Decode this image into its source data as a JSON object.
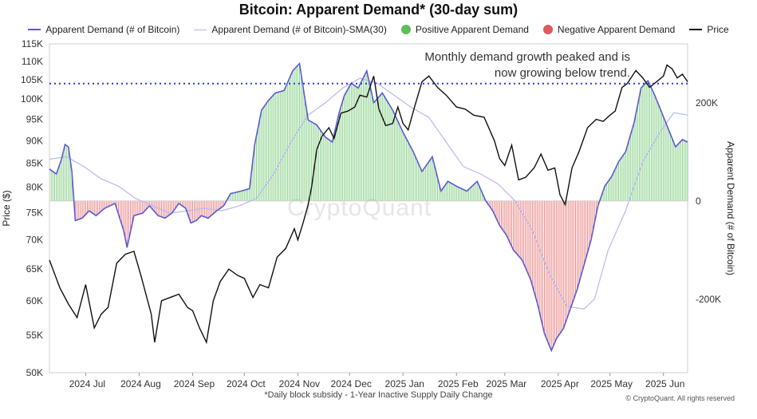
{
  "chart_data": {
    "type": "line",
    "title": "Bitcoin: Apparent Demand* (30-day sum)",
    "legend": [
      {
        "name": "Apparent Demand (# of Bitcoin)",
        "color": "#5b5bd6",
        "style": "line"
      },
      {
        "name": "Apparent Demand (# of Bitcoin)-SMA(30)",
        "color": "#b9b9f0",
        "style": "thin-line"
      },
      {
        "name": "Positive Apparent Demand",
        "color": "#5cbf5c",
        "style": "dot"
      },
      {
        "name": "Negative Apparent Demand",
        "color": "#e05a5a",
        "style": "dot"
      },
      {
        "name": "Price",
        "color": "#111111",
        "style": "line"
      }
    ],
    "legend_placement": "top",
    "left_axis": {
      "label": "Price ($)",
      "scale": "log",
      "range": [
        50000,
        115000
      ],
      "ticks": [
        "50K",
        "55K",
        "60K",
        "65K",
        "70K",
        "75K",
        "80K",
        "85K",
        "90K",
        "95K",
        "100K",
        "105K",
        "110K",
        "115K"
      ],
      "tick_values": [
        50000,
        55000,
        60000,
        65000,
        70000,
        75000,
        80000,
        85000,
        90000,
        95000,
        100000,
        105000,
        110000,
        115000
      ]
    },
    "right_axis": {
      "label": "Apparent Demand (# of Bitcoin)",
      "range": [
        -350000,
        320000
      ],
      "ticks": [
        "200K",
        "0",
        "-200K"
      ],
      "tick_values": [
        200000,
        0,
        -200000
      ]
    },
    "x_axis": {
      "ticks": [
        "2024 Jul",
        "2024 Aug",
        "2024 Sep",
        "2024 Oct",
        "2024 Nov",
        "2024 Dec",
        "2025 Jan",
        "2025 Feb",
        "2025 Mar",
        "2025 Apr",
        "2025 May",
        "2025 Jun"
      ],
      "tick_days": [
        -3,
        28,
        59,
        89,
        120,
        150,
        181,
        212,
        240,
        271,
        301,
        332
      ]
    },
    "x_range_days": [
      -24,
      346
    ],
    "reference_line": {
      "value": 104000,
      "axis": "left",
      "style": "dotted",
      "color": "#2a3bd8"
    },
    "annotation": [
      "Monthly demand growth peaked and is",
      "now growing below trend."
    ],
    "watermark": "CryptoQuant",
    "footnote": "*Daily block subsidy - 1-Year Inactive Supply Daily Change",
    "credit": "© CryptoQuant. All rights reserved",
    "series": [
      {
        "name": "Price",
        "axis": "left",
        "points": [
          [
            -24,
            66500
          ],
          [
            -18,
            62000
          ],
          [
            -13,
            59500
          ],
          [
            -8,
            57500
          ],
          [
            -3,
            62500
          ],
          [
            2,
            56000
          ],
          [
            6,
            58000
          ],
          [
            10,
            59000
          ],
          [
            15,
            66000
          ],
          [
            20,
            67500
          ],
          [
            25,
            68000
          ],
          [
            29,
            64000
          ],
          [
            35,
            58000
          ],
          [
            37,
            54000
          ],
          [
            41,
            60000
          ],
          [
            46,
            60500
          ],
          [
            51,
            61000
          ],
          [
            56,
            59000
          ],
          [
            59,
            58500
          ],
          [
            63,
            56000
          ],
          [
            67,
            54000
          ],
          [
            71,
            60000
          ],
          [
            75,
            63000
          ],
          [
            80,
            65000
          ],
          [
            85,
            64000
          ],
          [
            89,
            63500
          ],
          [
            94,
            60500
          ],
          [
            98,
            62500
          ],
          [
            103,
            62000
          ],
          [
            108,
            67000
          ],
          [
            113,
            68500
          ],
          [
            118,
            72000
          ],
          [
            120,
            70000
          ],
          [
            123,
            73000
          ],
          [
            126,
            76500
          ],
          [
            128,
            80000
          ],
          [
            131,
            88000
          ],
          [
            134,
            91000
          ],
          [
            138,
            93000
          ],
          [
            141,
            90500
          ],
          [
            145,
            96500
          ],
          [
            149,
            97000
          ],
          [
            153,
            98000
          ],
          [
            156,
            101000
          ],
          [
            160,
            100500
          ],
          [
            164,
            106000
          ],
          [
            167,
            97500
          ],
          [
            171,
            93500
          ],
          [
            175,
            94000
          ],
          [
            178,
            98000
          ],
          [
            181,
            94000
          ],
          [
            184,
            92500
          ],
          [
            188,
            98500
          ],
          [
            192,
            104500
          ],
          [
            196,
            106000
          ],
          [
            201,
            103000
          ],
          [
            206,
            101000
          ],
          [
            212,
            98000
          ],
          [
            217,
            97500
          ],
          [
            222,
            96000
          ],
          [
            228,
            95500
          ],
          [
            234,
            90000
          ],
          [
            237,
            86000
          ],
          [
            240,
            84500
          ],
          [
            244,
            89000
          ],
          [
            248,
            81500
          ],
          [
            252,
            82000
          ],
          [
            257,
            84000
          ],
          [
            261,
            87000
          ],
          [
            265,
            83500
          ],
          [
            269,
            84000
          ],
          [
            272,
            78500
          ],
          [
            275,
            76500
          ],
          [
            279,
            84000
          ],
          [
            283,
            87500
          ],
          [
            288,
            93000
          ],
          [
            293,
            95000
          ],
          [
            297,
            94500
          ],
          [
            301,
            96000
          ],
          [
            304,
            97000
          ],
          [
            308,
            103000
          ],
          [
            311,
            104000
          ],
          [
            316,
            107500
          ],
          [
            320,
            105500
          ],
          [
            324,
            103000
          ],
          [
            328,
            104500
          ],
          [
            332,
            106000
          ],
          [
            334,
            109000
          ],
          [
            337,
            108000
          ],
          [
            340,
            105500
          ],
          [
            343,
            106500
          ],
          [
            346,
            104500
          ]
        ]
      },
      {
        "name": "Apparent Demand (# of Bitcoin)",
        "axis": "right",
        "points": [
          [
            -24,
            65000
          ],
          [
            -20,
            55000
          ],
          [
            -17,
            85000
          ],
          [
            -15,
            115000
          ],
          [
            -13,
            110000
          ],
          [
            -11,
            60000
          ],
          [
            -9,
            -40000
          ],
          [
            -5,
            -35000
          ],
          [
            -1,
            -20000
          ],
          [
            3,
            -30000
          ],
          [
            8,
            -15000
          ],
          [
            14,
            -5000
          ],
          [
            19,
            -60000
          ],
          [
            21,
            -95000
          ],
          [
            25,
            -30000
          ],
          [
            30,
            -25000
          ],
          [
            34,
            -10000
          ],
          [
            39,
            -30000
          ],
          [
            43,
            -35000
          ],
          [
            47,
            -25000
          ],
          [
            51,
            -5000
          ],
          [
            55,
            -15000
          ],
          [
            58,
            -45000
          ],
          [
            61,
            -40000
          ],
          [
            64,
            -30000
          ],
          [
            68,
            -35000
          ],
          [
            73,
            -20000
          ],
          [
            77,
            -10000
          ],
          [
            81,
            15000
          ],
          [
            87,
            20000
          ],
          [
            92,
            25000
          ],
          [
            95,
            115000
          ],
          [
            99,
            185000
          ],
          [
            103,
            205000
          ],
          [
            107,
            220000
          ],
          [
            112,
            225000
          ],
          [
            117,
            265000
          ],
          [
            121,
            280000
          ],
          [
            126,
            165000
          ],
          [
            131,
            155000
          ],
          [
            136,
            130000
          ],
          [
            140,
            120000
          ],
          [
            144,
            180000
          ],
          [
            147,
            215000
          ],
          [
            151,
            240000
          ],
          [
            155,
            230000
          ],
          [
            160,
            265000
          ],
          [
            164,
            200000
          ],
          [
            169,
            220000
          ],
          [
            175,
            185000
          ],
          [
            181,
            140000
          ],
          [
            187,
            100000
          ],
          [
            192,
            60000
          ],
          [
            198,
            90000
          ],
          [
            203,
            20000
          ],
          [
            207,
            40000
          ],
          [
            212,
            30000
          ],
          [
            218,
            20000
          ],
          [
            224,
            40000
          ],
          [
            229,
            0
          ],
          [
            233,
            -20000
          ],
          [
            237,
            -50000
          ],
          [
            241,
            -70000
          ],
          [
            245,
            -100000
          ],
          [
            250,
            -120000
          ],
          [
            255,
            -160000
          ],
          [
            259,
            -210000
          ],
          [
            263,
            -270000
          ],
          [
            267,
            -305000
          ],
          [
            270,
            -280000
          ],
          [
            274,
            -260000
          ],
          [
            278,
            -220000
          ],
          [
            282,
            -180000
          ],
          [
            286,
            -130000
          ],
          [
            290,
            -80000
          ],
          [
            294,
            -10000
          ],
          [
            298,
            30000
          ],
          [
            302,
            50000
          ],
          [
            306,
            80000
          ],
          [
            310,
            100000
          ],
          [
            315,
            160000
          ],
          [
            319,
            230000
          ],
          [
            323,
            245000
          ],
          [
            327,
            215000
          ],
          [
            331,
            180000
          ],
          [
            335,
            145000
          ],
          [
            339,
            110000
          ],
          [
            343,
            125000
          ],
          [
            346,
            120000
          ]
        ]
      },
      {
        "name": "Apparent Demand (# of Bitcoin)-SMA(30)",
        "axis": "right",
        "points": [
          [
            -24,
            85000
          ],
          [
            -14,
            90000
          ],
          [
            -4,
            70000
          ],
          [
            6,
            45000
          ],
          [
            16,
            30000
          ],
          [
            26,
            5000
          ],
          [
            36,
            -10000
          ],
          [
            46,
            -25000
          ],
          [
            56,
            -20000
          ],
          [
            66,
            -15000
          ],
          [
            76,
            -20000
          ],
          [
            86,
            -10000
          ],
          [
            96,
            5000
          ],
          [
            106,
            55000
          ],
          [
            116,
            120000
          ],
          [
            126,
            175000
          ],
          [
            136,
            200000
          ],
          [
            146,
            230000
          ],
          [
            156,
            250000
          ],
          [
            166,
            240000
          ],
          [
            176,
            215000
          ],
          [
            186,
            190000
          ],
          [
            196,
            170000
          ],
          [
            206,
            120000
          ],
          [
            216,
            70000
          ],
          [
            226,
            55000
          ],
          [
            236,
            35000
          ],
          [
            246,
            0
          ],
          [
            256,
            -60000
          ],
          [
            266,
            -150000
          ],
          [
            276,
            -215000
          ],
          [
            286,
            -220000
          ],
          [
            292,
            -200000
          ],
          [
            300,
            -100000
          ],
          [
            310,
            -20000
          ],
          [
            320,
            80000
          ],
          [
            330,
            140000
          ],
          [
            338,
            180000
          ],
          [
            346,
            175000
          ]
        ]
      }
    ]
  }
}
